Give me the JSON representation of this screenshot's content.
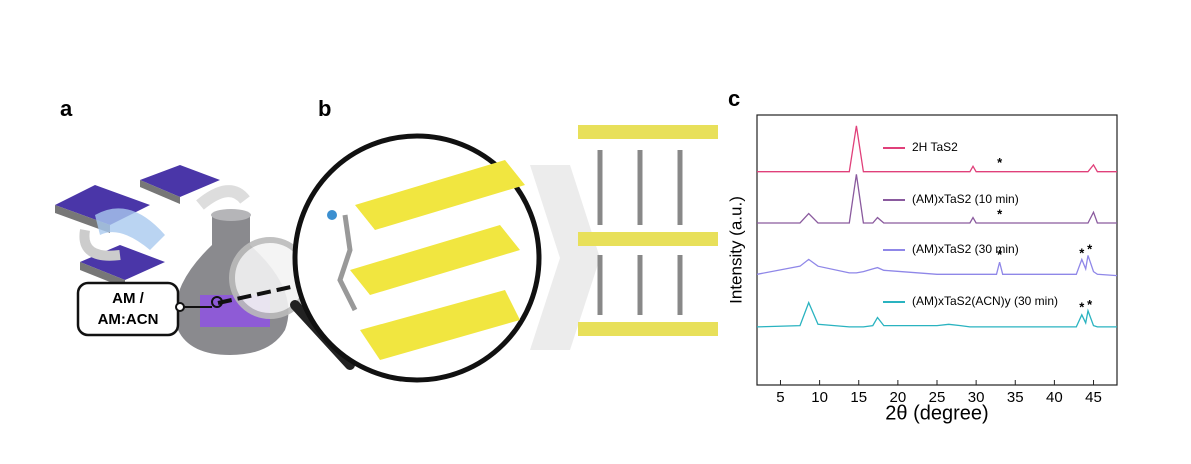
{
  "panels": {
    "a": {
      "label": "a",
      "box_text": [
        "AM /",
        "AM:ACN"
      ]
    },
    "b": {
      "label": "b"
    }
  },
  "chart_data": {
    "type": "line",
    "label": "c",
    "xlabel": "2θ (degree)",
    "ylabel": "Intensity (a.u.)",
    "x": [
      2,
      7.5,
      8.6,
      9.8,
      13.8,
      14.7,
      15.6,
      16.8,
      17.4,
      18.2,
      25,
      26.5,
      28,
      29.2,
      29.6,
      30,
      32.6,
      33,
      33.4,
      42.8,
      43.5,
      44,
      44.3,
      45,
      45.5,
      48
    ],
    "series": [
      {
        "name": "2H TaS2",
        "color": "#e0407a",
        "values": [
          7.9,
          7.9,
          7.9,
          7.9,
          7.9,
          9.6,
          7.9,
          7.9,
          7.9,
          7.9,
          7.9,
          7.9,
          7.9,
          7.9,
          8.1,
          7.9,
          7.9,
          7.9,
          7.9,
          7.9,
          7.9,
          7.9,
          7.9,
          8.15,
          7.9,
          7.9
        ]
      },
      {
        "name": "(AM)xTaS2 (10 min)",
        "color": "#8a5a9e",
        "values": [
          6.0,
          6.0,
          6.35,
          6.0,
          6.0,
          7.8,
          6.0,
          6.0,
          6.2,
          6.0,
          6.0,
          6.0,
          6.0,
          6.0,
          6.2,
          6.0,
          6.0,
          6.0,
          6.0,
          6.0,
          6.0,
          6.0,
          6.0,
          6.4,
          6.0,
          6.0
        ]
      },
      {
        "name": "(AM)xTaS2 (30 min)",
        "color": "#8f87e8",
        "values": [
          4.1,
          4.4,
          4.65,
          4.4,
          4.15,
          4.15,
          4.2,
          4.3,
          4.35,
          4.25,
          4.1,
          4.1,
          4.1,
          4.1,
          4.1,
          4.1,
          4.1,
          4.55,
          4.1,
          4.1,
          4.65,
          4.3,
          4.8,
          4.2,
          4.1,
          4.05
        ]
      },
      {
        "name": "(AM)xTaS2(ACN)y (30 min)",
        "color": "#2ab3c0",
        "values": [
          2.15,
          2.2,
          3.05,
          2.25,
          2.15,
          2.15,
          2.15,
          2.2,
          2.5,
          2.2,
          2.2,
          2.25,
          2.2,
          2.15,
          2.15,
          2.15,
          2.15,
          2.15,
          2.15,
          2.15,
          2.6,
          2.3,
          2.75,
          2.2,
          2.15,
          2.15
        ]
      }
    ],
    "annotations": [
      {
        "text": "*",
        "x": 33,
        "y": 8.2
      },
      {
        "text": "*",
        "x": 33,
        "y": 6.3
      },
      {
        "text": "*",
        "x": 33,
        "y": 4.8
      },
      {
        "text": "*",
        "x": 43.5,
        "y": 4.85
      },
      {
        "text": "*",
        "x": 44.5,
        "y": 5.0
      },
      {
        "text": "*",
        "x": 43.5,
        "y": 2.85
      },
      {
        "text": "*",
        "x": 44.5,
        "y": 2.95
      }
    ],
    "xlim": [
      2,
      48
    ],
    "xticks": [
      5,
      10,
      15,
      20,
      25,
      30,
      35,
      40,
      45
    ],
    "ylim": [
      0,
      10
    ],
    "grid": false
  }
}
